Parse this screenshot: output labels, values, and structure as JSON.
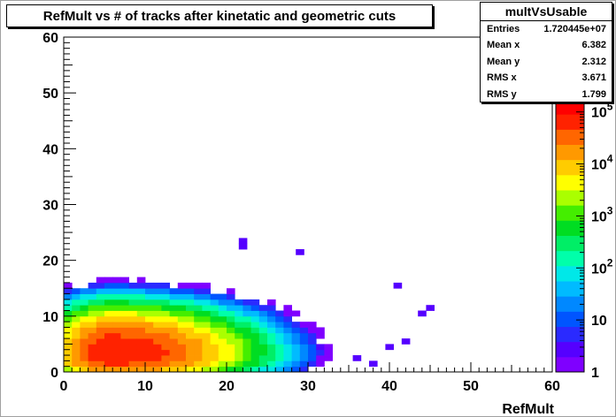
{
  "title": "RefMult vs # of tracks after kinetatic and geometric cuts",
  "stats": {
    "name": "multVsUsable",
    "rows": [
      {
        "label": "Entries",
        "value": "1.720445e+07"
      },
      {
        "label": "Mean x",
        "value": "6.382"
      },
      {
        "label": "Mean y",
        "value": "2.312"
      },
      {
        "label": "RMS x",
        "value": "3.671"
      },
      {
        "label": "RMS y",
        "value": "1.799"
      }
    ]
  },
  "colors": {
    "palette": [
      "#7f00ff",
      "#5500ff",
      "#2a2aff",
      "#0055ff",
      "#0088ff",
      "#00bbff",
      "#00e8e8",
      "#00ffaa",
      "#00ee66",
      "#00dd22",
      "#44ee00",
      "#aaff00",
      "#ffff00",
      "#ffcc00",
      "#ff9900",
      "#ff6600",
      "#ff2200",
      "#ff0000"
    ]
  },
  "chart_data": {
    "type": "heatmap",
    "title": "RefMult vs # of tracks after kinetatic and geometric cuts",
    "xlabel": "RefMult",
    "ylabel": "",
    "xlim": [
      0,
      60
    ],
    "ylim": [
      0,
      60
    ],
    "x_ticks": [
      "0",
      "10",
      "20",
      "30",
      "40",
      "50",
      "60"
    ],
    "y_ticks": [
      "0",
      "10",
      "20",
      "30",
      "40",
      "50",
      "60"
    ],
    "z_scale": "log",
    "z_ticks": [
      {
        "base": "1",
        "exp": ""
      },
      {
        "base": "10",
        "exp": ""
      },
      {
        "base": "10",
        "exp": "2"
      },
      {
        "base": "10",
        "exp": "3"
      },
      {
        "base": "10",
        "exp": "4"
      },
      {
        "base": "10",
        "exp": "5"
      }
    ],
    "distribution": {
      "peak_x": 6,
      "peak_y": 3.3,
      "max_log10_counts": 5.25,
      "x_extent": [
        0,
        45
      ],
      "y_extent": [
        0,
        24
      ],
      "sparse_points": [
        [
          22,
          23.5
        ],
        [
          22,
          22.5
        ],
        [
          29,
          21.5
        ],
        [
          41,
          15.5
        ],
        [
          44,
          10.5
        ],
        [
          45,
          11.5
        ],
        [
          42,
          5.5
        ],
        [
          40,
          4.5
        ],
        [
          36,
          2.5
        ],
        [
          38,
          1.5
        ]
      ]
    }
  }
}
